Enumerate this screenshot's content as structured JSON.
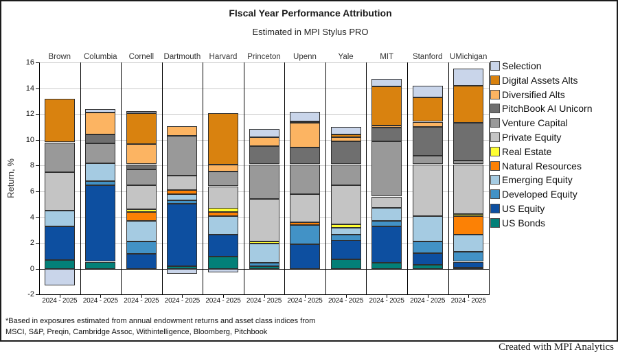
{
  "title": "FIscal Year Performance Attribution",
  "subtitle": "Estimated in MPI Stylus PRO",
  "footnote_line1": "*Based in exposures estimated from annual endowment returns and asset class indices from",
  "footnote_line2": "MSCI, S&P, Preqin, Cambridge Assoc, Withintelligence, Bloomberg, Pitchbook",
  "credit": "Created with MPI Analytics",
  "chart_data": {
    "type": "bar",
    "stacked": true,
    "title": "FIscal Year Performance Attribution",
    "subtitle": "Estimated in MPI Stylus PRO",
    "ylabel": "Return, %",
    "ylim": [
      -2,
      16
    ],
    "ytick_step": 2,
    "grid": true,
    "legend_position": "right",
    "period_label": "2024 - 2025",
    "categories": [
      "Brown",
      "Columbia",
      "Cornell",
      "Dartmouth",
      "Harvard",
      "Princeton",
      "Upenn",
      "Yale",
      "MIT",
      "Stanford",
      "UMichigan"
    ],
    "series": [
      {
        "key": "us_bonds",
        "name": "US Bonds",
        "color": "#038078",
        "values": [
          0.7,
          0.55,
          0,
          0.2,
          0.95,
          0.2,
          0,
          0.75,
          0.45,
          0.3,
          0.1
        ]
      },
      {
        "key": "us_equity",
        "name": "US Equity",
        "color": "#0d4fa0",
        "values": [
          2.6,
          5.95,
          1.15,
          4.85,
          1.7,
          0,
          1.9,
          1.45,
          2.85,
          0.9,
          0.45
        ]
      },
      {
        "key": "developed_equity",
        "name": "Developed Equity",
        "color": "#4292c6",
        "values": [
          0,
          0.3,
          0.95,
          0.25,
          0,
          0.25,
          1.5,
          0.45,
          0.4,
          0.9,
          0.75
        ]
      },
      {
        "key": "emerging_equity",
        "name": "Emerging Equity",
        "color": "#a5cbe2",
        "values": [
          1.2,
          1.4,
          1.6,
          0.5,
          1.45,
          1.5,
          0,
          0.55,
          1.0,
          2.0,
          1.35
        ]
      },
      {
        "key": "natural_resources",
        "name": "Natural Resources",
        "color": "#fc8105",
        "values": [
          0,
          0,
          0.7,
          0.3,
          0.3,
          0,
          0.2,
          0,
          0,
          0,
          1.45
        ]
      },
      {
        "key": "real_estate",
        "name": "Real Estate",
        "color": "#ffff33",
        "values": [
          0,
          0,
          0.2,
          0,
          0.3,
          0.15,
          0,
          0.25,
          0,
          0,
          0.15
        ]
      },
      {
        "key": "private_equity",
        "name": "Private Equity",
        "color": "#c4c4c4",
        "values": [
          3.0,
          0,
          1.9,
          1.1,
          1.7,
          3.3,
          2.2,
          3.05,
          0.9,
          4.0,
          3.85
        ]
      },
      {
        "key": "venture_capital",
        "name": "Venture Capital",
        "color": "#999999",
        "values": [
          2.3,
          1.5,
          1.2,
          3.1,
          1.15,
          2.7,
          2.3,
          1.6,
          4.3,
          0.65,
          0.3
        ]
      },
      {
        "key": "pitchbook_ai_unicorn",
        "name": "PitchBook AI Unicorn",
        "color": "#6f6f6f",
        "values": [
          0,
          0.7,
          0.4,
          0,
          0,
          1.4,
          1.3,
          1.8,
          1.05,
          2.25,
          2.9
        ]
      },
      {
        "key": "diversified_alts",
        "name": "Diversified Alts",
        "color": "#fcb462",
        "values": [
          0,
          1.7,
          1.55,
          0.75,
          0.55,
          0.7,
          1.9,
          0.3,
          0.15,
          0.4,
          0
        ]
      },
      {
        "key": "digital_assets_alts",
        "name": "Digital Assets Alts",
        "color": "#d9820f",
        "values": [
          3.4,
          0,
          2.4,
          0,
          3.95,
          0,
          0.15,
          0.2,
          3.05,
          1.9,
          2.9
        ]
      },
      {
        "key": "selection",
        "name": "Selection",
        "color": "#c9d5ea",
        "values": [
          -1.3,
          0.3,
          0.2,
          -0.4,
          -0.3,
          0.65,
          0.7,
          0.6,
          0.55,
          0.9,
          1.3
        ]
      }
    ],
    "bar_totals_top": [
      13.2,
      12.4,
      12.25,
      11.05,
      12.05,
      10.85,
      12.15,
      11.0,
      14.7,
      14.2,
      15.5
    ]
  }
}
